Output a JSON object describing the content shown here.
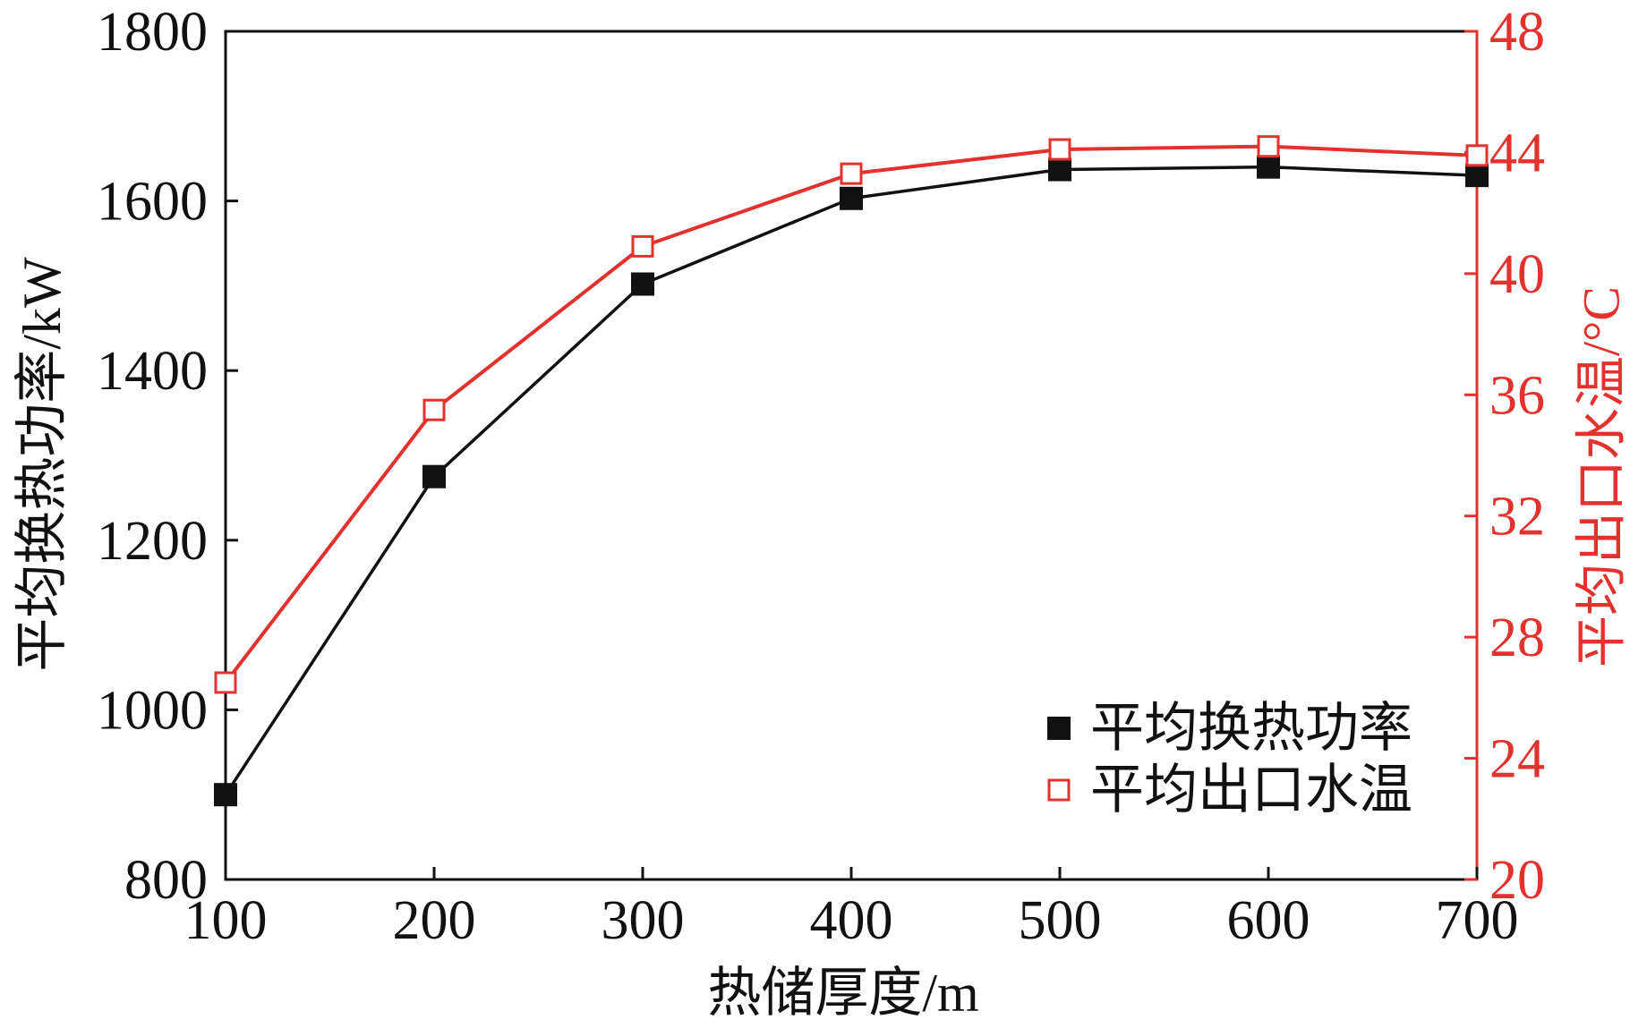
{
  "chart_data": {
    "type": "line",
    "x": [
      100,
      200,
      300,
      400,
      500,
      600,
      700
    ],
    "xlabel": "热储厚度/m",
    "ylabel": "平均换热功率/kW",
    "y2label": "平均出口水温/°C",
    "xlim": [
      100,
      700
    ],
    "ylim": [
      800,
      1800
    ],
    "y2lim": [
      20,
      48
    ],
    "xticks": [
      100,
      200,
      300,
      400,
      500,
      600,
      700
    ],
    "yticks": [
      800,
      1000,
      1200,
      1400,
      1600,
      1800
    ],
    "y2ticks": [
      20,
      24,
      28,
      32,
      36,
      40,
      44,
      48
    ],
    "series": [
      {
        "name": "平均换热功率",
        "axis": "left",
        "marker": "filled-square",
        "color": "#111111",
        "values": [
          900,
          1275,
          1502,
          1603,
          1637,
          1640,
          1630
        ]
      },
      {
        "name": "平均出口水温",
        "axis": "right",
        "marker": "open-square",
        "color": "#e3312d",
        "values": [
          26.5,
          35.5,
          40.9,
          43.3,
          44.1,
          44.2,
          43.9
        ]
      }
    ],
    "legend": "bottom-right",
    "grid": false
  },
  "colors": {
    "axis_left": "#111111",
    "axis_right": "#e3312d",
    "background": "#ffffff"
  }
}
